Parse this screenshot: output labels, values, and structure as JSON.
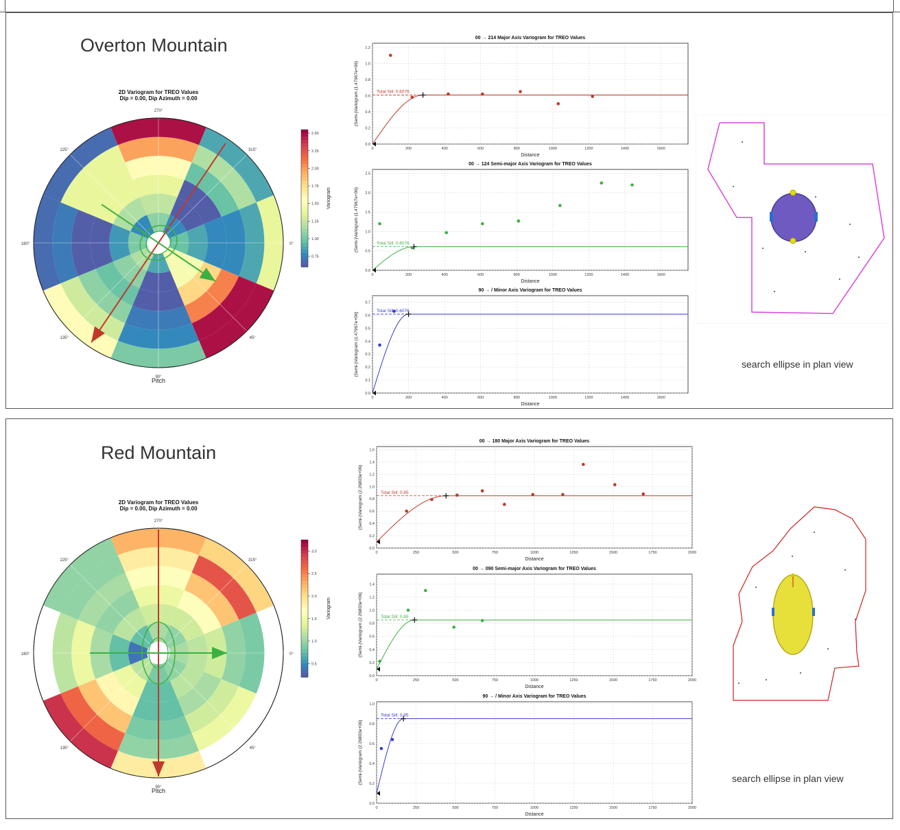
{
  "colors": {
    "major": "#c0392b",
    "semi_major": "#3cb043",
    "minor": "#3a3ad0",
    "plan_outline_overton": "#d946d9",
    "plan_outline_red": "#d02020",
    "ellipse_overton": "#6e5ac0",
    "ellipse_red": "#e8e03a"
  },
  "panels": [
    {
      "title": "Overton Mountain",
      "caption": "search ellipse in plan view",
      "polar": {
        "title_line1": "2D Variogram for TREO Values",
        "title_line2": "Dip = 0.00, Dip Azimuth = 0.00",
        "angle_labels": [
          "0°",
          "45°",
          "90°",
          "135°",
          "180°",
          "225°",
          "270°",
          "315°"
        ],
        "xlabel": "Pitch",
        "colorbar": {
          "label": "Variogram",
          "ticks": [
            "2.50",
            "2.25",
            "2.00",
            "1.75",
            "1.50",
            "1.25",
            "1.00",
            "0.75"
          ],
          "min": 0.6,
          "max": 2.55
        },
        "bins": 6,
        "sectors": [
          [
            1.0,
            0.9,
            0.8,
            0.8,
            0.9,
            1.4
          ],
          [
            1.5,
            1.5,
            1.8,
            2.1,
            2.5,
            2.5
          ],
          [
            0.9,
            0.65,
            0.65,
            0.75,
            0.8,
            1.05
          ],
          [
            1.2,
            1.1,
            1.0,
            1.1,
            1.3,
            1.6
          ],
          [
            1.05,
            0.85,
            0.65,
            0.65,
            0.75,
            0.7
          ],
          [
            0.8,
            1.2,
            1.4,
            1.4,
            1.4,
            0.7
          ],
          [
            1.1,
            1.25,
            1.4,
            1.6,
            2.0,
            2.5
          ],
          [
            0.8,
            0.65,
            0.65,
            1.0,
            1.2,
            0.9
          ]
        ],
        "major_arrow_deg": 124,
        "minor_arrow_deg": 34
      },
      "variograms": [
        {
          "title": "00 → 214 Major Axis Variogram for TREO Values",
          "ylabel": "(Semi-)Variogram (1.47967e+06)",
          "xlabel": "Distance",
          "sill_label": "Total Sill: 0.6076",
          "sill": 0.6076,
          "range": 280,
          "nugget": 0.0,
          "xlim": [
            0,
            1750
          ],
          "ylim": [
            0,
            1.25
          ],
          "xticks": [
            0,
            200,
            400,
            600,
            800,
            1000,
            1200,
            1400,
            1600
          ],
          "yticks": [
            0.0,
            0.2,
            0.4,
            0.6,
            0.8,
            1.0,
            1.2
          ],
          "points": [
            [
              100,
              1.1
            ],
            [
              220,
              0.58
            ],
            [
              420,
              0.62
            ],
            [
              610,
              0.62
            ],
            [
              820,
              0.65
            ],
            [
              1030,
              0.5
            ],
            [
              1220,
              0.59
            ]
          ],
          "series": "major"
        },
        {
          "title": "00 → 124 Semi-major Axis Variogram for TREO Values",
          "ylabel": "(Semi-)Variogram (1.47967e+06)",
          "xlabel": "Distance",
          "sill_label": "Total Sill: 0.6076",
          "sill": 0.6076,
          "range": 230,
          "nugget": 0.0,
          "xlim": [
            0,
            1750
          ],
          "ylim": [
            0,
            2.6
          ],
          "xticks": [
            0,
            200,
            400,
            600,
            800,
            1000,
            1200,
            1400,
            1600
          ],
          "yticks": [
            0.0,
            0.5,
            1.0,
            1.5,
            2.0,
            2.5
          ],
          "points": [
            [
              40,
              1.2
            ],
            [
              220,
              0.58
            ],
            [
              410,
              0.97
            ],
            [
              610,
              1.2
            ],
            [
              810,
              1.27
            ],
            [
              1040,
              1.67
            ],
            [
              1270,
              2.25
            ],
            [
              1440,
              2.2
            ]
          ],
          "series": "semi_major"
        },
        {
          "title": "90 → / Minor Axis Variogram for TREO Values",
          "ylabel": "(Semi-)Variogram (1.47967e+06)",
          "xlabel": "Distance",
          "sill_label": "Total Sill: 0.6076",
          "sill": 0.6076,
          "range": 200,
          "nugget": 0.0,
          "xlim": [
            0,
            1750
          ],
          "ylim": [
            0,
            0.75
          ],
          "xticks": [
            0,
            200,
            400,
            600,
            800,
            1000,
            1200,
            1400,
            1600
          ],
          "yticks": [
            0.0,
            0.1,
            0.2,
            0.3,
            0.4,
            0.5,
            0.6,
            0.7
          ],
          "points": [
            [
              40,
              0.37
            ],
            [
              120,
              0.63
            ]
          ],
          "series": "minor"
        }
      ]
    },
    {
      "title": "Red Mountain",
      "caption": "search ellipse in plan view",
      "polar": {
        "title_line1": "2D Variogram for TREO Values",
        "title_line2": "Dip = 0.00, Dip Azimuth = 0.00",
        "angle_labels": [
          "0°",
          "45°",
          "90°",
          "135°",
          "180°",
          "225°",
          "270°",
          "315°"
        ],
        "xlabel": "Pitch",
        "colorbar": {
          "label": "Variogram",
          "ticks": [
            "3.0",
            "2.5",
            "2.0",
            "1.5",
            "1.0",
            "0.5"
          ],
          "min": 0.2,
          "max": 3.25
        },
        "bins": 6,
        "sectors": [
          [
            1.1,
            1.2,
            1.3,
            1.0,
            0.9,
            null
          ],
          [
            1.0,
            1.2,
            1.1,
            1.3,
            1.5,
            null
          ],
          [
            0.9,
            0.8,
            0.8,
            0.9,
            1.0,
            1.9
          ],
          [
            1.2,
            1.5,
            1.8,
            2.2,
            2.7,
            3.0
          ],
          [
            0.4,
            0.8,
            1.1,
            1.5,
            1.2,
            null
          ],
          [
            0.8,
            1.2,
            1.0,
            1.1,
            1.0,
            1.0
          ],
          [
            1.1,
            1.3,
            1.5,
            1.7,
            1.9,
            2.3
          ],
          [
            1.0,
            1.3,
            1.7,
            2.2,
            2.8,
            2.1
          ]
        ],
        "major_arrow_deg": 90,
        "minor_arrow_deg": 0
      },
      "variograms": [
        {
          "title": "00 → 180 Major Axis Variogram for TREO Values",
          "ylabel": "(Semi-)Variogram (2.26803e+06)",
          "xlabel": "Distance",
          "sill_label": "Total Sill: 0.85",
          "sill": 0.85,
          "range": 440,
          "nugget": 0.1,
          "xlim": [
            0,
            2000
          ],
          "ylim": [
            0,
            1.65
          ],
          "xticks": [
            0,
            250,
            500,
            750,
            1000,
            1250,
            1500,
            1750,
            2000
          ],
          "yticks": [
            0.0,
            0.2,
            0.4,
            0.6,
            0.8,
            1.0,
            1.2,
            1.4,
            1.6
          ],
          "points": [
            [
              190,
              0.6
            ],
            [
              350,
              0.79
            ],
            [
              510,
              0.86
            ],
            [
              670,
              0.93
            ],
            [
              810,
              0.71
            ],
            [
              990,
              0.87
            ],
            [
              1180,
              0.87
            ],
            [
              1310,
              1.36
            ],
            [
              1510,
              1.03
            ],
            [
              1690,
              0.88
            ]
          ],
          "series": "major"
        },
        {
          "title": "00 → 090 Semi-major Axis Variogram for TREO Values",
          "ylabel": "(Semi-)Variogram (2.26803e+06)",
          "xlabel": "Distance",
          "sill_label": "Total Sill: 0.85",
          "sill": 0.85,
          "range": 240,
          "nugget": 0.1,
          "xlim": [
            0,
            2000
          ],
          "ylim": [
            0,
            1.55
          ],
          "xticks": [
            0,
            250,
            500,
            750,
            1000,
            1250,
            1500,
            1750,
            2000
          ],
          "yticks": [
            0.0,
            0.2,
            0.4,
            0.6,
            0.8,
            1.0,
            1.2,
            1.4
          ],
          "points": [
            [
              20,
              0.22
            ],
            [
              200,
              1.0
            ],
            [
              310,
              1.3
            ],
            [
              490,
              0.74
            ],
            [
              670,
              0.84
            ]
          ],
          "series": "semi_major"
        },
        {
          "title": "90 → / Minor Axis Variogram for TREO Values",
          "ylabel": "(Semi-)Variogram (2.26803e+06)",
          "xlabel": "Distance",
          "sill_label": "Total Sill: 0.85",
          "sill": 0.85,
          "range": 170,
          "nugget": 0.1,
          "xlim": [
            0,
            2000
          ],
          "ylim": [
            0,
            1.02
          ],
          "xticks": [
            0,
            250,
            500,
            750,
            1000,
            1250,
            1500,
            1750,
            2000
          ],
          "yticks": [
            0.0,
            0.2,
            0.4,
            0.6,
            0.8,
            1.0
          ],
          "points": [
            [
              30,
              0.55
            ],
            [
              100,
              0.64
            ]
          ],
          "series": "minor"
        }
      ]
    }
  ]
}
